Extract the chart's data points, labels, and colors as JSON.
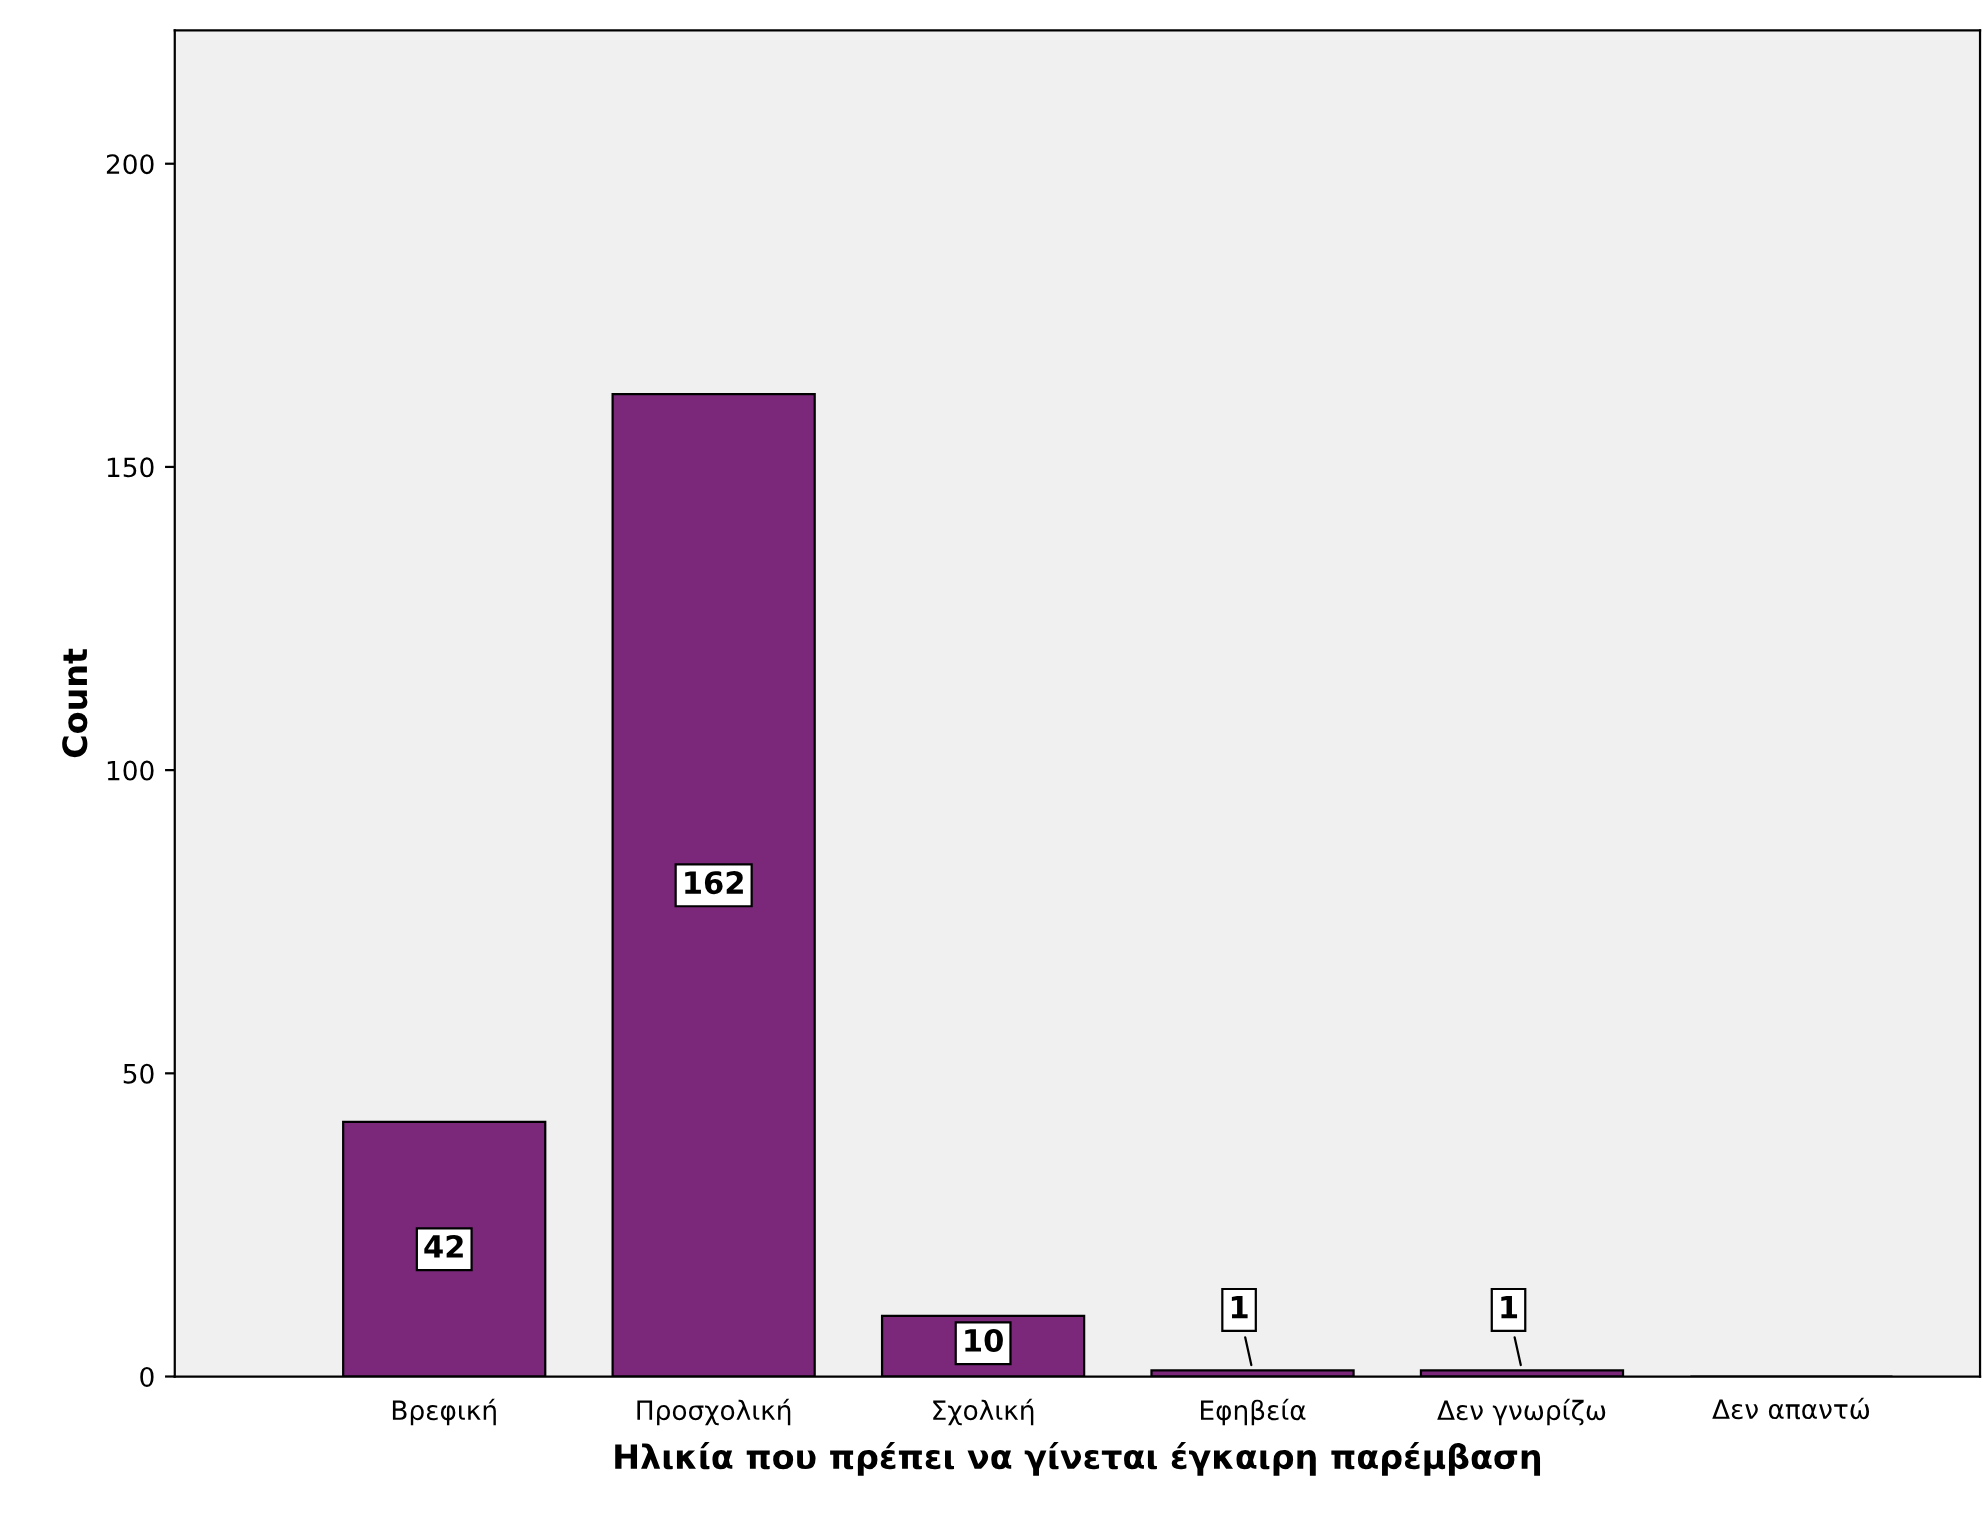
{
  "chart_data": {
    "type": "bar",
    "xlabel": "Ηλικία που πρέπει να γίνεται έγκαιρη παρέμβαση",
    "ylabel": "Count",
    "categories": [
      "Βρεφική",
      "Προσχολική",
      "Σχολική",
      "Εφηβεία",
      "Δεν γνωρίζω",
      "Δεν απαντώ"
    ],
    "values": [
      42,
      162,
      10,
      1,
      1,
      0
    ],
    "value_labels": [
      "42",
      "162",
      "10",
      "1",
      "1",
      null
    ],
    "color": "#7b287b",
    "ylim": [
      0,
      222
    ],
    "yticks": [
      0,
      50,
      100,
      150,
      200
    ],
    "grid": false,
    "legend": false
  }
}
